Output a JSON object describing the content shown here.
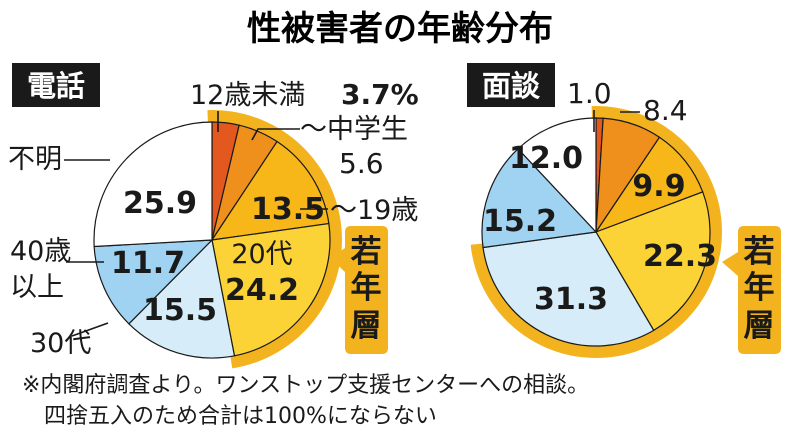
{
  "title": "性被害者の年齢分布",
  "colors": {
    "under12": "#e2581f",
    "junior_high": "#ef8f1c",
    "to19": "#f7b719",
    "twenties": "#fbd337",
    "thirties": "#d6ecf8",
    "forties_plus": "#9fd3f1",
    "unknown": "#ffffff",
    "young_band": "#f2b31e",
    "label_bg": "#1a1a1a"
  },
  "young_label": "若年層",
  "notes": [
    "※内閣府調査より。ワンストップ支援センターへの相談。",
    "四捨五入のため合計は100%にならない"
  ],
  "chart_data": [
    {
      "type": "pie",
      "title": "電話",
      "slices": [
        {
          "label": "12歳未満",
          "value": 3.7,
          "display": "3.7%"
        },
        {
          "label": "～中学生",
          "value": 5.6,
          "display": "5.6"
        },
        {
          "label": "～19歳",
          "value": 13.5,
          "display": "13.5"
        },
        {
          "label": "20代",
          "value": 24.2,
          "display": "24.2"
        },
        {
          "label": "30代",
          "value": 15.5,
          "display": "15.5"
        },
        {
          "label": "40歳以上",
          "value": 11.7,
          "display": "11.7"
        },
        {
          "label": "不明",
          "value": 25.9,
          "display": "25.9"
        }
      ],
      "young_group": [
        "12歳未満",
        "～中学生",
        "～19歳",
        "20代"
      ]
    },
    {
      "type": "pie",
      "title": "面談",
      "slices": [
        {
          "label": "12歳未満",
          "value": 1.0,
          "display": "1.0"
        },
        {
          "label": "～中学生",
          "value": 8.4,
          "display": "8.4"
        },
        {
          "label": "～19歳",
          "value": 9.9,
          "display": "9.9"
        },
        {
          "label": "20代",
          "value": 22.3,
          "display": "22.3"
        },
        {
          "label": "30代",
          "value": 31.3,
          "display": "31.3"
        },
        {
          "label": "40歳以上",
          "value": 15.2,
          "display": "15.2"
        },
        {
          "label": "不明",
          "value": 12.0,
          "display": "12.0"
        }
      ],
      "young_group": [
        "12歳未満",
        "～中学生",
        "～19歳",
        "20代",
        "30代"
      ]
    }
  ]
}
